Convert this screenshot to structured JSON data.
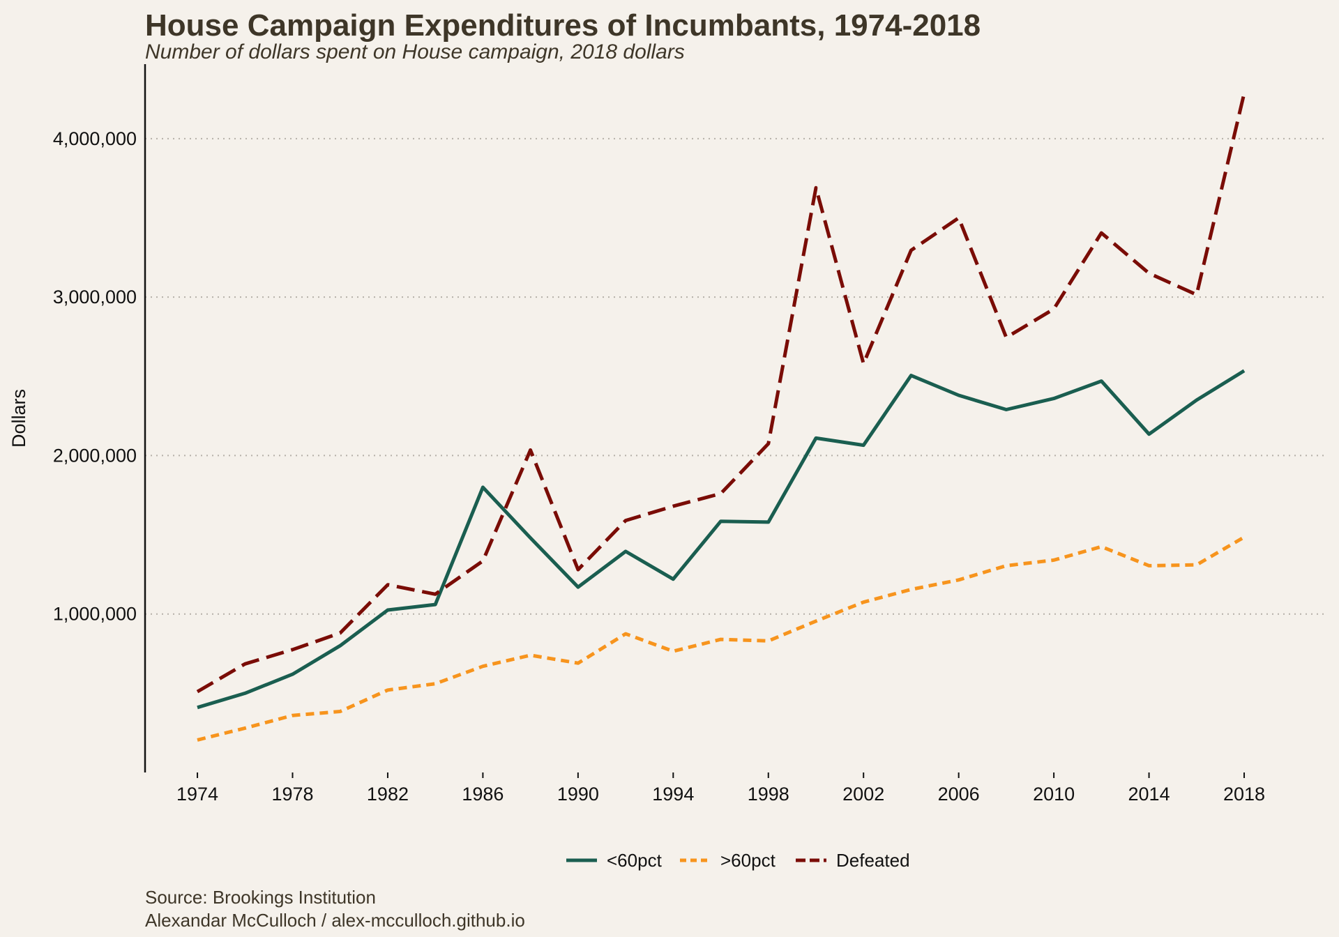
{
  "title": "House Campaign Expenditures of Incumbants, 1974-2018",
  "subtitle": "Number of dollars spent on House campaign, 2018 dollars",
  "caption": {
    "source": "Source: Brookings Institution",
    "author": "Alexandar McCulloch / alex-mcculloch.github.io"
  },
  "chart_data": {
    "type": "line",
    "title": "House Campaign Expenditures of Incumbants, 1974-2018",
    "subtitle": "Number of dollars spent on House campaign, 2018 dollars",
    "xlabel": "",
    "ylabel": "Dollars",
    "x": [
      1974,
      1976,
      1978,
      1980,
      1982,
      1984,
      1986,
      1988,
      1990,
      1992,
      1994,
      1996,
      1998,
      2000,
      2002,
      2004,
      2006,
      2008,
      2010,
      2012,
      2014,
      2016,
      2018
    ],
    "x_ticks": [
      "1974",
      "1978",
      "1982",
      "1986",
      "1990",
      "1994",
      "1998",
      "2002",
      "2006",
      "2010",
      "2014",
      "2018"
    ],
    "y_ticks": [
      "1,000,000",
      "2,000,000",
      "3,000,000",
      "4,000,000"
    ],
    "y_tick_values": [
      1000000,
      2000000,
      3000000,
      4000000
    ],
    "xlim": [
      1971.8,
      2021.4
    ],
    "ylim": [
      0,
      4470000
    ],
    "grid": "horizontal dotted",
    "legend_position": "bottom",
    "series": [
      {
        "name": "<60pct",
        "color": "#1a5e50",
        "dash": "solid",
        "values": [
          410000,
          500000,
          620000,
          800000,
          1025000,
          1060000,
          1800000,
          1480000,
          1170000,
          1395000,
          1220000,
          1585000,
          1580000,
          2110000,
          2065000,
          2505000,
          2380000,
          2290000,
          2360000,
          2470000,
          2135000,
          2350000,
          2535000
        ]
      },
      {
        "name": ">60pct",
        "color": "#f7941d",
        "dash": "short",
        "values": [
          205000,
          280000,
          360000,
          385000,
          520000,
          560000,
          670000,
          740000,
          690000,
          875000,
          765000,
          840000,
          830000,
          955000,
          1075000,
          1155000,
          1215000,
          1305000,
          1340000,
          1425000,
          1305000,
          1310000,
          1485000
        ]
      },
      {
        "name": "Defeated",
        "color": "#7a0c06",
        "dash": "long",
        "values": [
          510000,
          685000,
          775000,
          880000,
          1185000,
          1125000,
          1335000,
          2035000,
          1280000,
          1590000,
          1680000,
          1760000,
          2075000,
          3690000,
          2580000,
          3295000,
          3500000,
          2745000,
          2925000,
          3405000,
          3150000,
          3015000,
          4285000
        ]
      }
    ]
  }
}
